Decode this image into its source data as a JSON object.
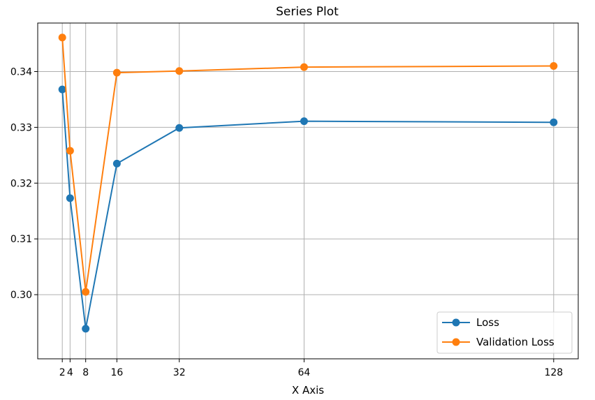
{
  "chart_data": {
    "type": "line",
    "title": "Series Plot",
    "xlabel": "X Axis",
    "ylabel": "",
    "x": [
      2,
      4,
      8,
      16,
      32,
      64,
      128
    ],
    "x_tick_labels": [
      "2",
      "4",
      "8",
      "16",
      "32",
      "64",
      "128"
    ],
    "y_ticks": [
      0.3,
      0.31,
      0.32,
      0.33,
      0.34
    ],
    "y_tick_labels": [
      "0.30",
      "0.31",
      "0.32",
      "0.33",
      "0.34"
    ],
    "xlim": [
      -4.3,
      134.3
    ],
    "ylim": [
      0.2885,
      0.3487
    ],
    "grid": true,
    "legend_position": "lower-right",
    "series": [
      {
        "name": "Loss",
        "color": "#1f77b4",
        "marker": "circle",
        "values": [
          0.3368,
          0.3173,
          0.2939,
          0.3235,
          0.3299,
          0.3311,
          0.3309
        ]
      },
      {
        "name": "Validation Loss",
        "color": "#ff7f0e",
        "marker": "circle",
        "values": [
          0.3461,
          0.3258,
          0.3005,
          0.3398,
          0.3401,
          0.3408,
          0.341
        ]
      }
    ]
  }
}
